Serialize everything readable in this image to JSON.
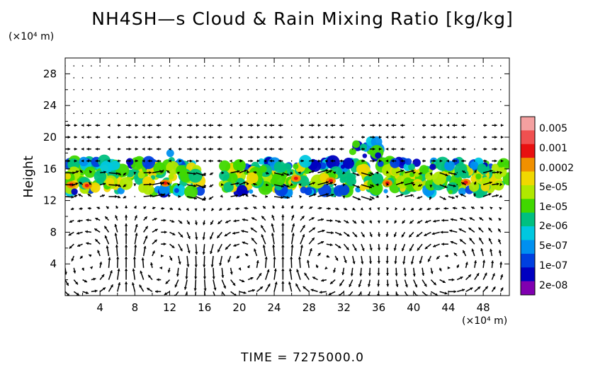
{
  "title": "NH4SH—s Cloud & Rain Mixing Ratio [kg/kg]",
  "y_unit": "(×10⁴ m)",
  "x_unit": "(×10⁴ m)",
  "time_label": "TIME  =  7275000.0",
  "chart_data": {
    "type": "heatmap",
    "title": "NH4SH—s Cloud & Rain Mixing Ratio [kg/kg]",
    "xlabel": "",
    "ylabel": "Height",
    "x_unit": "(×10⁴ m)",
    "y_unit": "(×10⁴ m)",
    "xlim": [
      0,
      51
    ],
    "ylim": [
      0,
      30
    ],
    "x_ticks": [
      "4",
      "8",
      "12",
      "16",
      "20",
      "24",
      "28",
      "32",
      "36",
      "40",
      "44",
      "48"
    ],
    "x_tick_values": [
      4,
      8,
      12,
      16,
      20,
      24,
      28,
      32,
      36,
      40,
      44,
      48
    ],
    "y_ticks": [
      "4",
      "8",
      "12",
      "16",
      "20",
      "24",
      "28"
    ],
    "y_tick_values": [
      4,
      8,
      12,
      16,
      20,
      24,
      28
    ],
    "colorbar": {
      "labels": [
        "0.005",
        "0.001",
        "0.0002",
        "5e-05",
        "1e-05",
        "2e-06",
        "5e-07",
        "1e-07",
        "2e-08"
      ],
      "colors": [
        "#f4a0a0",
        "#f05050",
        "#e81010",
        "#f09000",
        "#f0d800",
        "#b0e800",
        "#40d800",
        "#00c080",
        "#00c8e0",
        "#0090f0",
        "#0040e0",
        "#0000c0",
        "#8000b0"
      ]
    },
    "cloud_layer": {
      "base_height": 13,
      "top_height": 17,
      "max_top_height": 19.5,
      "gaps_x": [
        [
          15.5,
          18
        ]
      ],
      "elevated_cells": [
        {
          "x": [
            33,
            36
          ],
          "top": 19.5
        },
        {
          "x": [
            11.5,
            12.5
          ],
          "top": 18.5
        }
      ]
    },
    "circulation_cells": [
      {
        "center_x": 4,
        "center_y": 4
      },
      {
        "center_x": 10,
        "center_y": 4
      },
      {
        "center_x": 21,
        "center_y": 4
      },
      {
        "center_x": 29,
        "center_y": 4
      },
      {
        "center_x": 44,
        "center_y": 4
      }
    ]
  }
}
